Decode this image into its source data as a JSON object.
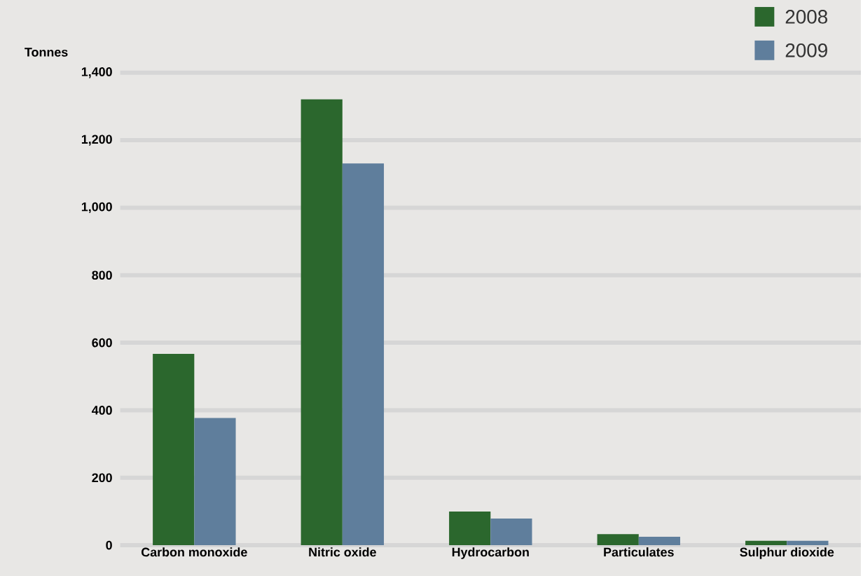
{
  "chart_data": {
    "type": "bar",
    "ylabel": "Tonnes",
    "categories": [
      "Carbon monoxide",
      "Nitric oxide",
      "Hydrocarbon",
      "Particulates",
      "Sulphur dioxide"
    ],
    "series": [
      {
        "name": "2008",
        "color": "#2b672d",
        "values": [
          567,
          1321,
          100,
          33,
          13
        ]
      },
      {
        "name": "2009",
        "color": "#5f7e9c",
        "values": [
          377,
          1131,
          79,
          25,
          13
        ]
      }
    ],
    "ylim": [
      0,
      1400
    ],
    "yticks": [
      {
        "value": 0,
        "label": "0"
      },
      {
        "value": 200,
        "label": "200"
      },
      {
        "value": 400,
        "label": "400"
      },
      {
        "value": 600,
        "label": "600"
      },
      {
        "value": 800,
        "label": "800"
      },
      {
        "value": 1000,
        "label": "1,000"
      },
      {
        "value": 1200,
        "label": "1,200"
      },
      {
        "value": 1400,
        "label": "1,400"
      }
    ],
    "grid": "y",
    "legend": "top right"
  }
}
